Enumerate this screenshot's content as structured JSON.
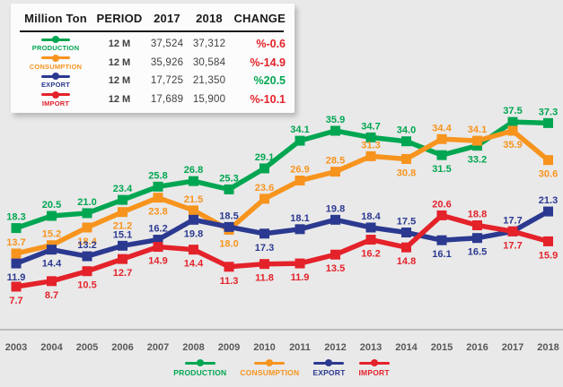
{
  "table": {
    "headers": [
      "Million Ton",
      "PERIOD",
      "2017",
      "2018",
      "CHANGE"
    ],
    "rows": [
      {
        "name": "PRODUCTION",
        "color": "#00A651",
        "period": "12 M",
        "v2017": "37,524",
        "v2018": "37,312",
        "change": "%-0.6",
        "change_color": "#E4222A"
      },
      {
        "name": "CONSUMPTION",
        "color": "#F7941E",
        "period": "12 M",
        "v2017": "35,926",
        "v2018": "30,584",
        "change": "%-14.9",
        "change_color": "#E4222A"
      },
      {
        "name": "EXPORT",
        "color": "#2B3990",
        "period": "12 M",
        "v2017": "17,725",
        "v2018": "21,350",
        "change": "%20.5",
        "change_color": "#00A651"
      },
      {
        "name": "IMPORT",
        "color": "#E4222A",
        "period": "12 M",
        "v2017": "17,689",
        "v2018": "15,900",
        "change": "%-10.1",
        "change_color": "#E4222A"
      }
    ]
  },
  "chart_data": {
    "type": "line",
    "title": "",
    "ylabel": "Million Ton",
    "x": [
      "2003",
      "2004",
      "2005",
      "2006",
      "2007",
      "2008",
      "2009",
      "2010",
      "2011",
      "2012",
      "2013",
      "2014",
      "2015",
      "2016",
      "2017",
      "2018"
    ],
    "ylim": [
      0,
      42
    ],
    "grid": false,
    "legend_position": "bottom",
    "series": [
      {
        "name": "PRODUCTION",
        "color": "#00A651",
        "values": [
          18.3,
          20.5,
          21.0,
          23.4,
          25.8,
          26.8,
          25.3,
          29.1,
          34.1,
          35.9,
          34.7,
          34.0,
          31.5,
          33.2,
          37.5,
          37.3
        ],
        "point_labels": [
          "18.3",
          "20.5",
          "21.0",
          "23.4",
          "25.8",
          "26.8",
          "25.3",
          "29.1",
          "34.1",
          "35.9",
          "34.7",
          "34.0",
          "31.5",
          "33.2",
          "37.5",
          "37.3"
        ],
        "label_pos": [
          "a",
          "a",
          "a",
          "a",
          "a",
          "a",
          "a",
          "a",
          "a",
          "a",
          "a",
          "a",
          "b",
          "b",
          "a",
          "a"
        ]
      },
      {
        "name": "CONSUMPTION",
        "color": "#F7941E",
        "values": [
          13.7,
          15.2,
          18.4,
          21.2,
          23.8,
          21.5,
          18.0,
          23.6,
          26.9,
          28.5,
          31.3,
          30.8,
          34.4,
          34.1,
          35.9,
          30.6
        ],
        "point_labels": [
          "13.7",
          "15.2",
          "18.4",
          "21.2",
          "23.8",
          "21.5",
          "18.0",
          "23.6",
          "26.9",
          "28.5",
          "31.3",
          "30.8",
          "34.4",
          "34.1",
          "35.9",
          "30.6"
        ],
        "label_pos": [
          "a",
          "a",
          "b",
          "b",
          "b",
          "a",
          "b",
          "a",
          "a",
          "a",
          "a",
          "b",
          "a",
          "a",
          "b",
          "b"
        ]
      },
      {
        "name": "EXPORT",
        "color": "#2B3990",
        "values": [
          11.9,
          14.4,
          13.2,
          15.1,
          16.2,
          19.8,
          18.5,
          17.3,
          18.1,
          19.8,
          18.4,
          17.5,
          16.1,
          16.5,
          17.7,
          21.3
        ],
        "point_labels": [
          "11.9",
          "14.4",
          "13.2",
          "15.1",
          "16.2",
          "19.8",
          "18.5",
          "17.3",
          "18.1",
          "19.8",
          "18.4",
          "17.5",
          "16.1",
          "16.5",
          "17.7",
          "21.3"
        ],
        "label_pos": [
          "b",
          "b",
          "a",
          "a",
          "a",
          "b",
          "a",
          "b",
          "a",
          "a",
          "a",
          "a",
          "b",
          "b",
          "a",
          "a"
        ]
      },
      {
        "name": "IMPORT",
        "color": "#E4222A",
        "values": [
          7.7,
          8.7,
          10.5,
          12.7,
          14.9,
          14.4,
          11.3,
          11.8,
          11.9,
          13.5,
          16.2,
          14.8,
          20.6,
          18.8,
          17.7,
          15.9
        ],
        "point_labels": [
          "7.7",
          "8.7",
          "10.5",
          "12.7",
          "14.9",
          "14.4",
          "11.3",
          "11.8",
          "11.9",
          "13.5",
          "16.2",
          "14.8",
          "20.6",
          "18.8",
          "17.7",
          "15.9"
        ],
        "label_pos": [
          "b",
          "b",
          "b",
          "b",
          "b",
          "b",
          "b",
          "b",
          "b",
          "b",
          "b",
          "b",
          "a",
          "a",
          "b",
          "b"
        ]
      }
    ]
  },
  "legend": {
    "items": [
      {
        "label": "PRODUCTION",
        "color": "#00A651"
      },
      {
        "label": "CONSUMPTION",
        "color": "#F7941E"
      },
      {
        "label": "EXPORT",
        "color": "#2B3990"
      },
      {
        "label": "IMPORT",
        "color": "#E4222A"
      }
    ]
  },
  "style": {
    "axis_line_color": "#bcbcbc",
    "axis_label_color": "#58595b",
    "background": "#e9e9e9"
  }
}
